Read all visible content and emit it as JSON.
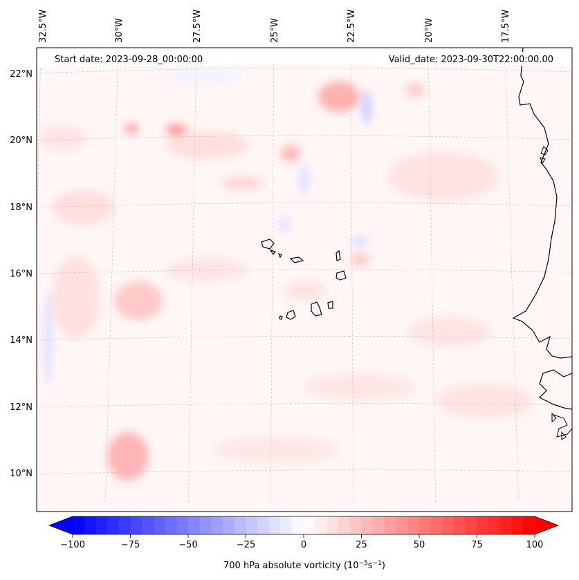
{
  "map": {
    "start_date_label": "Start date: 2023-09-28_00:00:00",
    "valid_date_label": "Valid_date: 2023-09-30T22:00:00.00",
    "longitude_labels": [
      "32.5°W",
      "30°W",
      "27.5°W",
      "25°W",
      "22.5°W",
      "20°W",
      "17.5°W"
    ],
    "latitude_labels": [
      "22°N",
      "20°N",
      "18°N",
      "16°N",
      "14°N",
      "12°N",
      "10°N"
    ],
    "background_color": "#fff6f6",
    "coastline_color": "#000000",
    "gridline_color": "#b8b8b8"
  },
  "colorbar": {
    "tick_labels": [
      "−100",
      "−75",
      "−50",
      "−25",
      "0",
      "25",
      "50",
      "75",
      "100"
    ],
    "label_prefix": "700 hPa absolute vorticity (10",
    "label_exp1": "−5",
    "label_mid": "s",
    "label_exp2": "−1",
    "label_suffix": ")",
    "min_color": "#0000ff",
    "mid_color": "#ffffff",
    "max_color": "#ff0000",
    "range": [
      -100,
      100
    ],
    "extend": "both"
  }
}
